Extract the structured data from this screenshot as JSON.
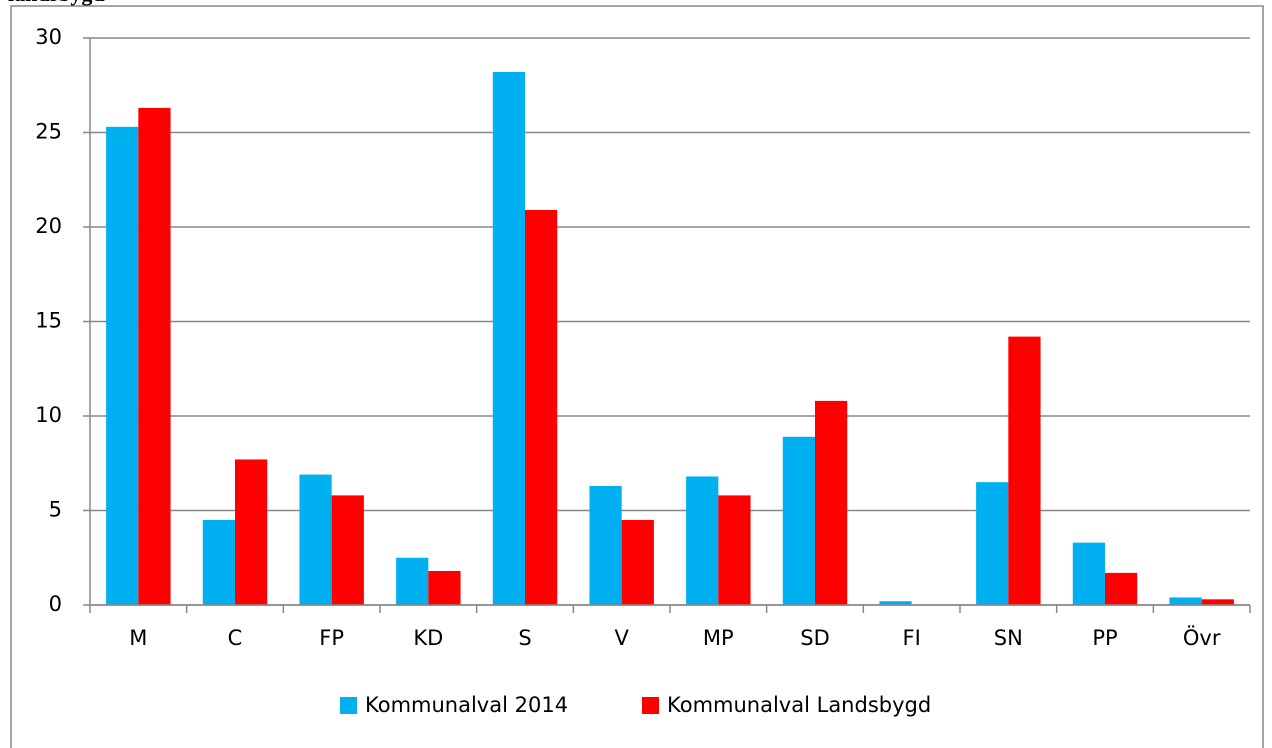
{
  "chart_data": {
    "type": "bar",
    "title": "landsbygd",
    "categories": [
      "M",
      "C",
      "FP",
      "KD",
      "S",
      "V",
      "MP",
      "SD",
      "FI",
      "SN",
      "PP",
      "Övr"
    ],
    "series": [
      {
        "name": "Kommunalval 2014",
        "color": "#00b0f0",
        "values": [
          25.3,
          4.5,
          6.9,
          2.5,
          28.2,
          6.3,
          6.8,
          8.9,
          0.2,
          6.5,
          3.3,
          0.4
        ]
      },
      {
        "name": "Kommunalval Landsbygd",
        "color": "#ff0000",
        "values": [
          26.3,
          7.7,
          5.8,
          1.8,
          20.9,
          4.5,
          5.8,
          10.8,
          0,
          14.2,
          1.7,
          0.3
        ]
      }
    ],
    "ylim": [
      0,
      30
    ],
    "yticks": [
      0,
      5,
      10,
      15,
      20,
      25,
      30
    ],
    "grid": true,
    "legend": "bottom"
  }
}
